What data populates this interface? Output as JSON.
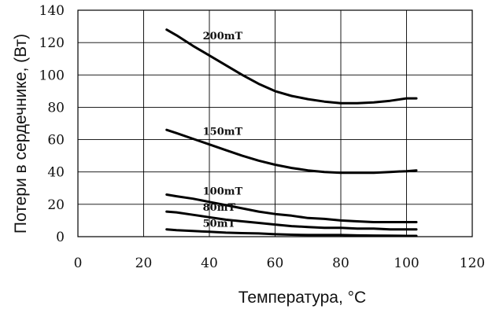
{
  "chart_data": {
    "type": "line",
    "xlabel": "Температура, °С",
    "ylabel": "Потери в сердечнике, (Вт)",
    "xlim": [
      0,
      120
    ],
    "ylim": [
      0,
      140
    ],
    "xticks": [
      0,
      20,
      40,
      60,
      80,
      100,
      120
    ],
    "yticks": [
      0,
      20,
      40,
      60,
      80,
      100,
      120,
      140
    ],
    "grid": true,
    "series": [
      {
        "name": "200mT",
        "x": [
          27,
          30,
          35,
          40,
          45,
          50,
          55,
          60,
          65,
          70,
          75,
          80,
          85,
          90,
          95,
          100,
          103
        ],
        "y": [
          128,
          124.5,
          118,
          112,
          106,
          100,
          94.5,
          90,
          87,
          85,
          83.5,
          82.5,
          82.5,
          83,
          84,
          85.5,
          85.5
        ]
      },
      {
        "name": "150mT",
        "x": [
          27,
          30,
          35,
          40,
          45,
          50,
          55,
          60,
          65,
          70,
          75,
          80,
          85,
          90,
          95,
          100,
          103
        ],
        "y": [
          66,
          64,
          60.5,
          57,
          53.5,
          50,
          47,
          44.5,
          42.5,
          41,
          40,
          39.5,
          39.5,
          39.5,
          40,
          40.5,
          41
        ]
      },
      {
        "name": "100mT",
        "x": [
          27,
          30,
          35,
          40,
          45,
          50,
          55,
          60,
          65,
          70,
          75,
          80,
          85,
          90,
          95,
          100,
          103
        ],
        "y": [
          26,
          25,
          23.5,
          21.5,
          19.5,
          17.5,
          15.5,
          14,
          13,
          11.5,
          11,
          10,
          9.5,
          9,
          9,
          9,
          9
        ]
      },
      {
        "name": "80mT",
        "x": [
          27,
          30,
          35,
          40,
          45,
          50,
          55,
          60,
          65,
          70,
          75,
          80,
          85,
          90,
          95,
          100,
          103
        ],
        "y": [
          15.5,
          15,
          13.5,
          12,
          10.5,
          9.5,
          8.5,
          7.5,
          6.5,
          6,
          5.5,
          5.5,
          5,
          5,
          4.5,
          4.5,
          4.5
        ]
      },
      {
        "name": "50mT",
        "x": [
          27,
          30,
          35,
          40,
          45,
          50,
          55,
          60,
          65,
          70,
          75,
          80,
          85,
          90,
          95,
          100,
          103
        ],
        "y": [
          4.5,
          4,
          3.5,
          3,
          2.5,
          2.2,
          2,
          1.5,
          1.2,
          1,
          1,
          1,
          0.8,
          0.7,
          0.6,
          0.5,
          0.5
        ]
      }
    ],
    "annotations": [
      {
        "text": "200mT",
        "x": 38,
        "y": 122
      },
      {
        "text": "150mT",
        "x": 38,
        "y": 63
      },
      {
        "text": "100mT",
        "x": 38,
        "y": 26
      },
      {
        "text": "80mT",
        "x": 38,
        "y": 16
      },
      {
        "text": "50mT",
        "x": 38,
        "y": 6
      }
    ]
  }
}
